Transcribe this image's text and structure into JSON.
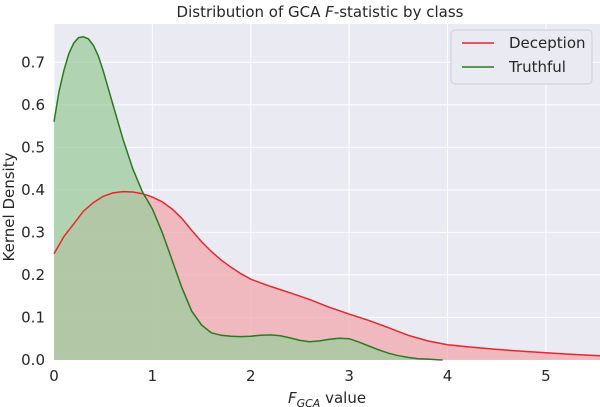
{
  "chart_data": {
    "type": "area",
    "title_parts": [
      "Distribution of GCA ",
      "F",
      "-statistic by class"
    ],
    "xlabel_parts": [
      "F",
      "GCA",
      " value"
    ],
    "ylabel": "Kernel Density",
    "xlim": [
      0,
      5.55
    ],
    "ylim": [
      0,
      0.79
    ],
    "xticks": [
      0,
      1,
      2,
      3,
      4,
      5
    ],
    "yticks": [
      0.0,
      0.1,
      0.2,
      0.3,
      0.4,
      0.5,
      0.6,
      0.7
    ],
    "grid": true,
    "legend_position": "top-right",
    "series": [
      {
        "name": "Deception",
        "color": "#e8262e",
        "fill": "#f1a8ad",
        "x": [
          0,
          0.1,
          0.2,
          0.3,
          0.4,
          0.5,
          0.6,
          0.7,
          0.8,
          0.9,
          1.0,
          1.1,
          1.2,
          1.3,
          1.4,
          1.5,
          1.6,
          1.7,
          1.8,
          1.9,
          2.0,
          2.2,
          2.4,
          2.6,
          2.8,
          3.0,
          3.2,
          3.4,
          3.6,
          3.8,
          4.0,
          4.2,
          4.5,
          4.8,
          5.2,
          5.55
        ],
        "y": [
          0.25,
          0.29,
          0.32,
          0.35,
          0.37,
          0.385,
          0.393,
          0.396,
          0.395,
          0.391,
          0.383,
          0.372,
          0.355,
          0.333,
          0.305,
          0.278,
          0.255,
          0.235,
          0.218,
          0.203,
          0.19,
          0.173,
          0.158,
          0.142,
          0.124,
          0.108,
          0.093,
          0.076,
          0.058,
          0.045,
          0.036,
          0.031,
          0.025,
          0.02,
          0.014,
          0.01
        ]
      },
      {
        "name": "Truthful",
        "color": "#2a7a1e",
        "fill": "#9ccc9c",
        "x": [
          0,
          0.05,
          0.1,
          0.15,
          0.2,
          0.25,
          0.3,
          0.35,
          0.4,
          0.45,
          0.5,
          0.6,
          0.7,
          0.8,
          0.9,
          1.0,
          1.1,
          1.2,
          1.3,
          1.4,
          1.5,
          1.6,
          1.7,
          1.8,
          1.9,
          2.0,
          2.1,
          2.2,
          2.3,
          2.4,
          2.5,
          2.6,
          2.7,
          2.8,
          2.9,
          3.0,
          3.1,
          3.2,
          3.3,
          3.4,
          3.5,
          3.6,
          3.7,
          3.8,
          3.9,
          3.95
        ],
        "y": [
          0.56,
          0.63,
          0.68,
          0.72,
          0.745,
          0.758,
          0.76,
          0.755,
          0.74,
          0.715,
          0.68,
          0.6,
          0.52,
          0.45,
          0.395,
          0.355,
          0.3,
          0.235,
          0.17,
          0.115,
          0.082,
          0.064,
          0.058,
          0.056,
          0.055,
          0.056,
          0.058,
          0.059,
          0.057,
          0.052,
          0.046,
          0.043,
          0.045,
          0.049,
          0.051,
          0.05,
          0.042,
          0.033,
          0.024,
          0.016,
          0.01,
          0.006,
          0.003,
          0.002,
          0.0005,
          0
        ]
      }
    ]
  }
}
